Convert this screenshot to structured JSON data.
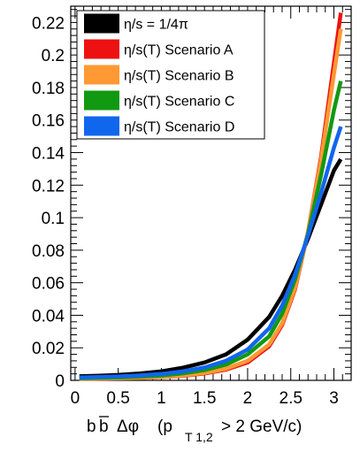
{
  "chart_data": {
    "type": "line",
    "xlabel_parts": {
      "b1": "b",
      "b2": "b",
      "dphi": "Δφ",
      "open": "(p",
      "sub": "T 1,2",
      "close": "> 2 GeV/c)"
    },
    "ylabel": "",
    "xlim": [
      -0.05,
      3.2
    ],
    "ylim": [
      0,
      0.23
    ],
    "x_ticks": [
      0,
      0.5,
      1,
      1.5,
      2,
      2.5,
      3
    ],
    "x_tick_labels": [
      "0",
      "0.5",
      "1",
      "1.5",
      "2",
      "2.5",
      "3"
    ],
    "y_ticks": [
      0,
      0.02,
      0.04,
      0.06,
      0.08,
      0.1,
      0.12,
      0.14,
      0.16,
      0.18,
      0.2,
      0.22
    ],
    "y_tick_labels": [
      "0",
      "0.02",
      "0.04",
      "0.06",
      "0.08",
      "0.1",
      "0.12",
      "0.14",
      "0.16",
      "0.18",
      "0.2",
      "0.22"
    ],
    "grid": false,
    "legend_position": "top-left",
    "x": [
      0.05,
      0.25,
      0.5,
      0.75,
      1.0,
      1.25,
      1.5,
      1.75,
      2.0,
      2.25,
      2.4,
      2.55,
      2.7,
      2.85,
      3.0,
      3.08
    ],
    "series": [
      {
        "name": "η/s = 1/4π",
        "color": "#000000",
        "values": [
          0.0025,
          0.0028,
          0.0033,
          0.0042,
          0.0055,
          0.0078,
          0.011,
          0.016,
          0.025,
          0.039,
          0.052,
          0.068,
          0.087,
          0.108,
          0.129,
          0.136
        ]
      },
      {
        "name": "η/s(T) Scenario A",
        "color": "#ee1111",
        "values": [
          0.0009,
          0.001,
          0.0012,
          0.0015,
          0.002,
          0.0028,
          0.0042,
          0.0066,
          0.011,
          0.021,
          0.034,
          0.056,
          0.091,
          0.137,
          0.195,
          0.226
        ]
      },
      {
        "name": "η/s(T) Scenario B",
        "color": "#ff9933",
        "values": [
          0.001,
          0.0011,
          0.0013,
          0.0016,
          0.0021,
          0.003,
          0.0045,
          0.0071,
          0.012,
          0.022,
          0.035,
          0.057,
          0.091,
          0.135,
          0.188,
          0.216
        ]
      },
      {
        "name": "η/s(T) Scenario C",
        "color": "#119911",
        "values": [
          0.0013,
          0.0015,
          0.0018,
          0.0023,
          0.003,
          0.0043,
          0.0063,
          0.0097,
          0.016,
          0.027,
          0.041,
          0.062,
          0.09,
          0.126,
          0.166,
          0.184
        ]
      },
      {
        "name": "η/s(T) Scenario D",
        "color": "#1166ee",
        "values": [
          0.0018,
          0.002,
          0.0024,
          0.003,
          0.0039,
          0.0055,
          0.0079,
          0.012,
          0.019,
          0.032,
          0.046,
          0.065,
          0.089,
          0.115,
          0.143,
          0.156
        ]
      }
    ]
  }
}
